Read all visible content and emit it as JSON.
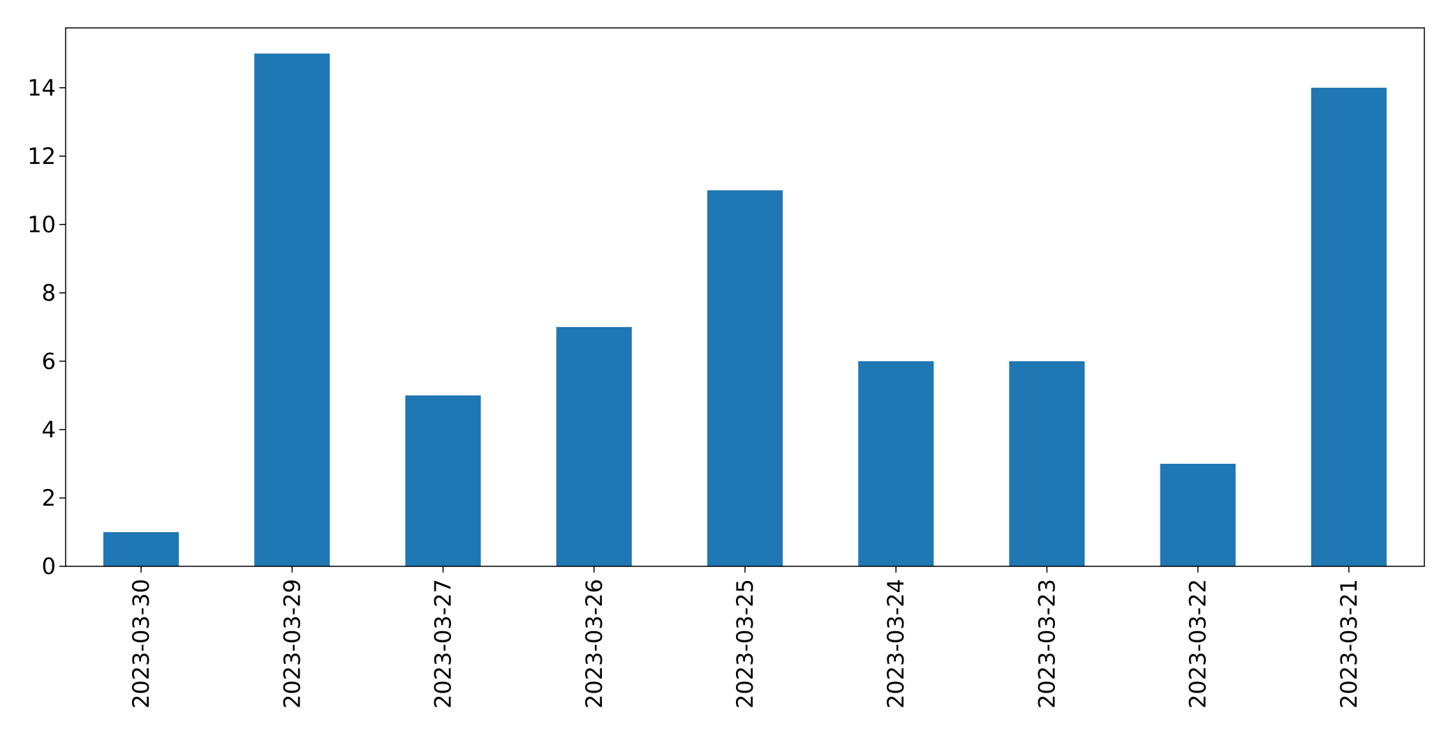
{
  "chart_data": {
    "type": "bar",
    "title": "",
    "xlabel": "",
    "ylabel": "",
    "categories": [
      "2023-03-30",
      "2023-03-29",
      "2023-03-27",
      "2023-03-26",
      "2023-03-25",
      "2023-03-24",
      "2023-03-23",
      "2023-03-22",
      "2023-03-21"
    ],
    "values": [
      1,
      15,
      5,
      7,
      11,
      6,
      6,
      3,
      14
    ],
    "ylim": [
      0,
      15.75
    ],
    "yticks": [
      0,
      2,
      4,
      6,
      8,
      10,
      12,
      14
    ],
    "grid": false,
    "legend": "none",
    "bar_color": "#1f77b4",
    "axis_color": "#000000"
  }
}
